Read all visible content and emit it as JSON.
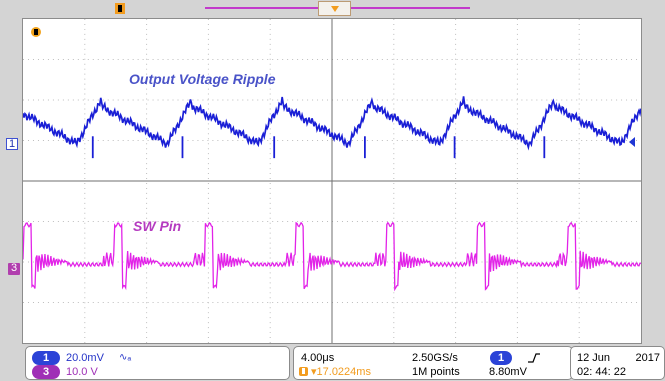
{
  "chart_data": {
    "type": "line",
    "title": "",
    "xlabel": "",
    "ylabel": "",
    "grid": true,
    "x": [
      0,
      1,
      2,
      3,
      4,
      5,
      6,
      7,
      8,
      9,
      10
    ],
    "series": [
      {
        "name": "Output Voltage Ripple",
        "color": "#1a1fd6",
        "values": [
          0.6,
          0.1,
          0.72,
          0.15,
          0.72,
          0.18,
          0.7,
          0.14,
          0.72,
          0.18,
          0.66
        ]
      },
      {
        "name": "SW Pin",
        "color": "#e223e8",
        "values": [
          0.45,
          0.98,
          0.12,
          0.5,
          0.96,
          0.1,
          0.48,
          0.98,
          0.12,
          0.48,
          0.94
        ]
      }
    ],
    "annotations": [
      "Output Voltage Ripple",
      "SW Pin"
    ]
  },
  "screen": {
    "ch1_label": "Output Voltage Ripple",
    "ch3_label": "SW Pin"
  },
  "panel": {
    "ch1_badge": "1",
    "ch1_scale": "20.0mV",
    "ch1_bw": "∿ₐ",
    "ch3_badge": "3",
    "ch3_scale": "10.0 V",
    "time_div": "4.00μs",
    "trigger_offset": "▾17.0224ms",
    "sample_rate": "2.50GS/s",
    "record_points": "1M points",
    "trigger_source": "1",
    "trigger_level": "8.80mV",
    "date": "12 Jun",
    "year": "2017",
    "clock": "02: 44: 22"
  },
  "icons": {
    "trigger": "trigger-icon",
    "edge": "rising-edge-icon",
    "level": "trigger-level-icon"
  }
}
